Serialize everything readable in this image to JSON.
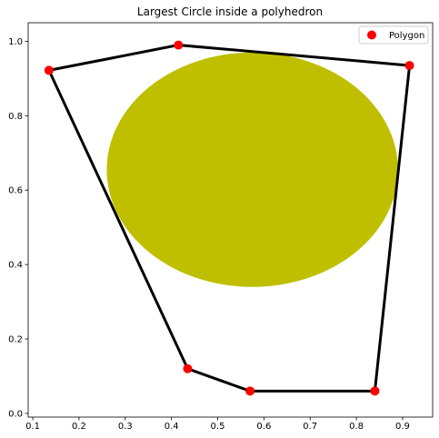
{
  "chart_data": {
    "type": "scatter",
    "title": "Largest Circle inside a polyhedron",
    "xlabel": "",
    "ylabel": "",
    "xlim": [
      0.09,
      0.965
    ],
    "ylim": [
      -0.01,
      1.05
    ],
    "xticks": [
      0.1,
      0.2,
      0.3,
      0.4,
      0.5,
      0.6,
      0.7,
      0.8,
      0.9
    ],
    "yticks": [
      0.0,
      0.2,
      0.4,
      0.6,
      0.8,
      1.0
    ],
    "grid": false,
    "legend_position": "top-right",
    "series": [
      {
        "name": "Polygon",
        "color": "#ff0000",
        "points": [
          {
            "x": 0.57,
            "y": 0.06
          },
          {
            "x": 0.84,
            "y": 0.06
          },
          {
            "x": 0.915,
            "y": 0.935
          },
          {
            "x": 0.415,
            "y": 0.99
          },
          {
            "x": 0.135,
            "y": 0.922
          },
          {
            "x": 0.435,
            "y": 0.12
          }
        ]
      }
    ],
    "outline": {
      "color": "#000000",
      "closed": true
    },
    "circle": {
      "center_x": 0.575,
      "center_y": 0.655,
      "radius": 0.315,
      "color": "#bfbf00"
    }
  }
}
